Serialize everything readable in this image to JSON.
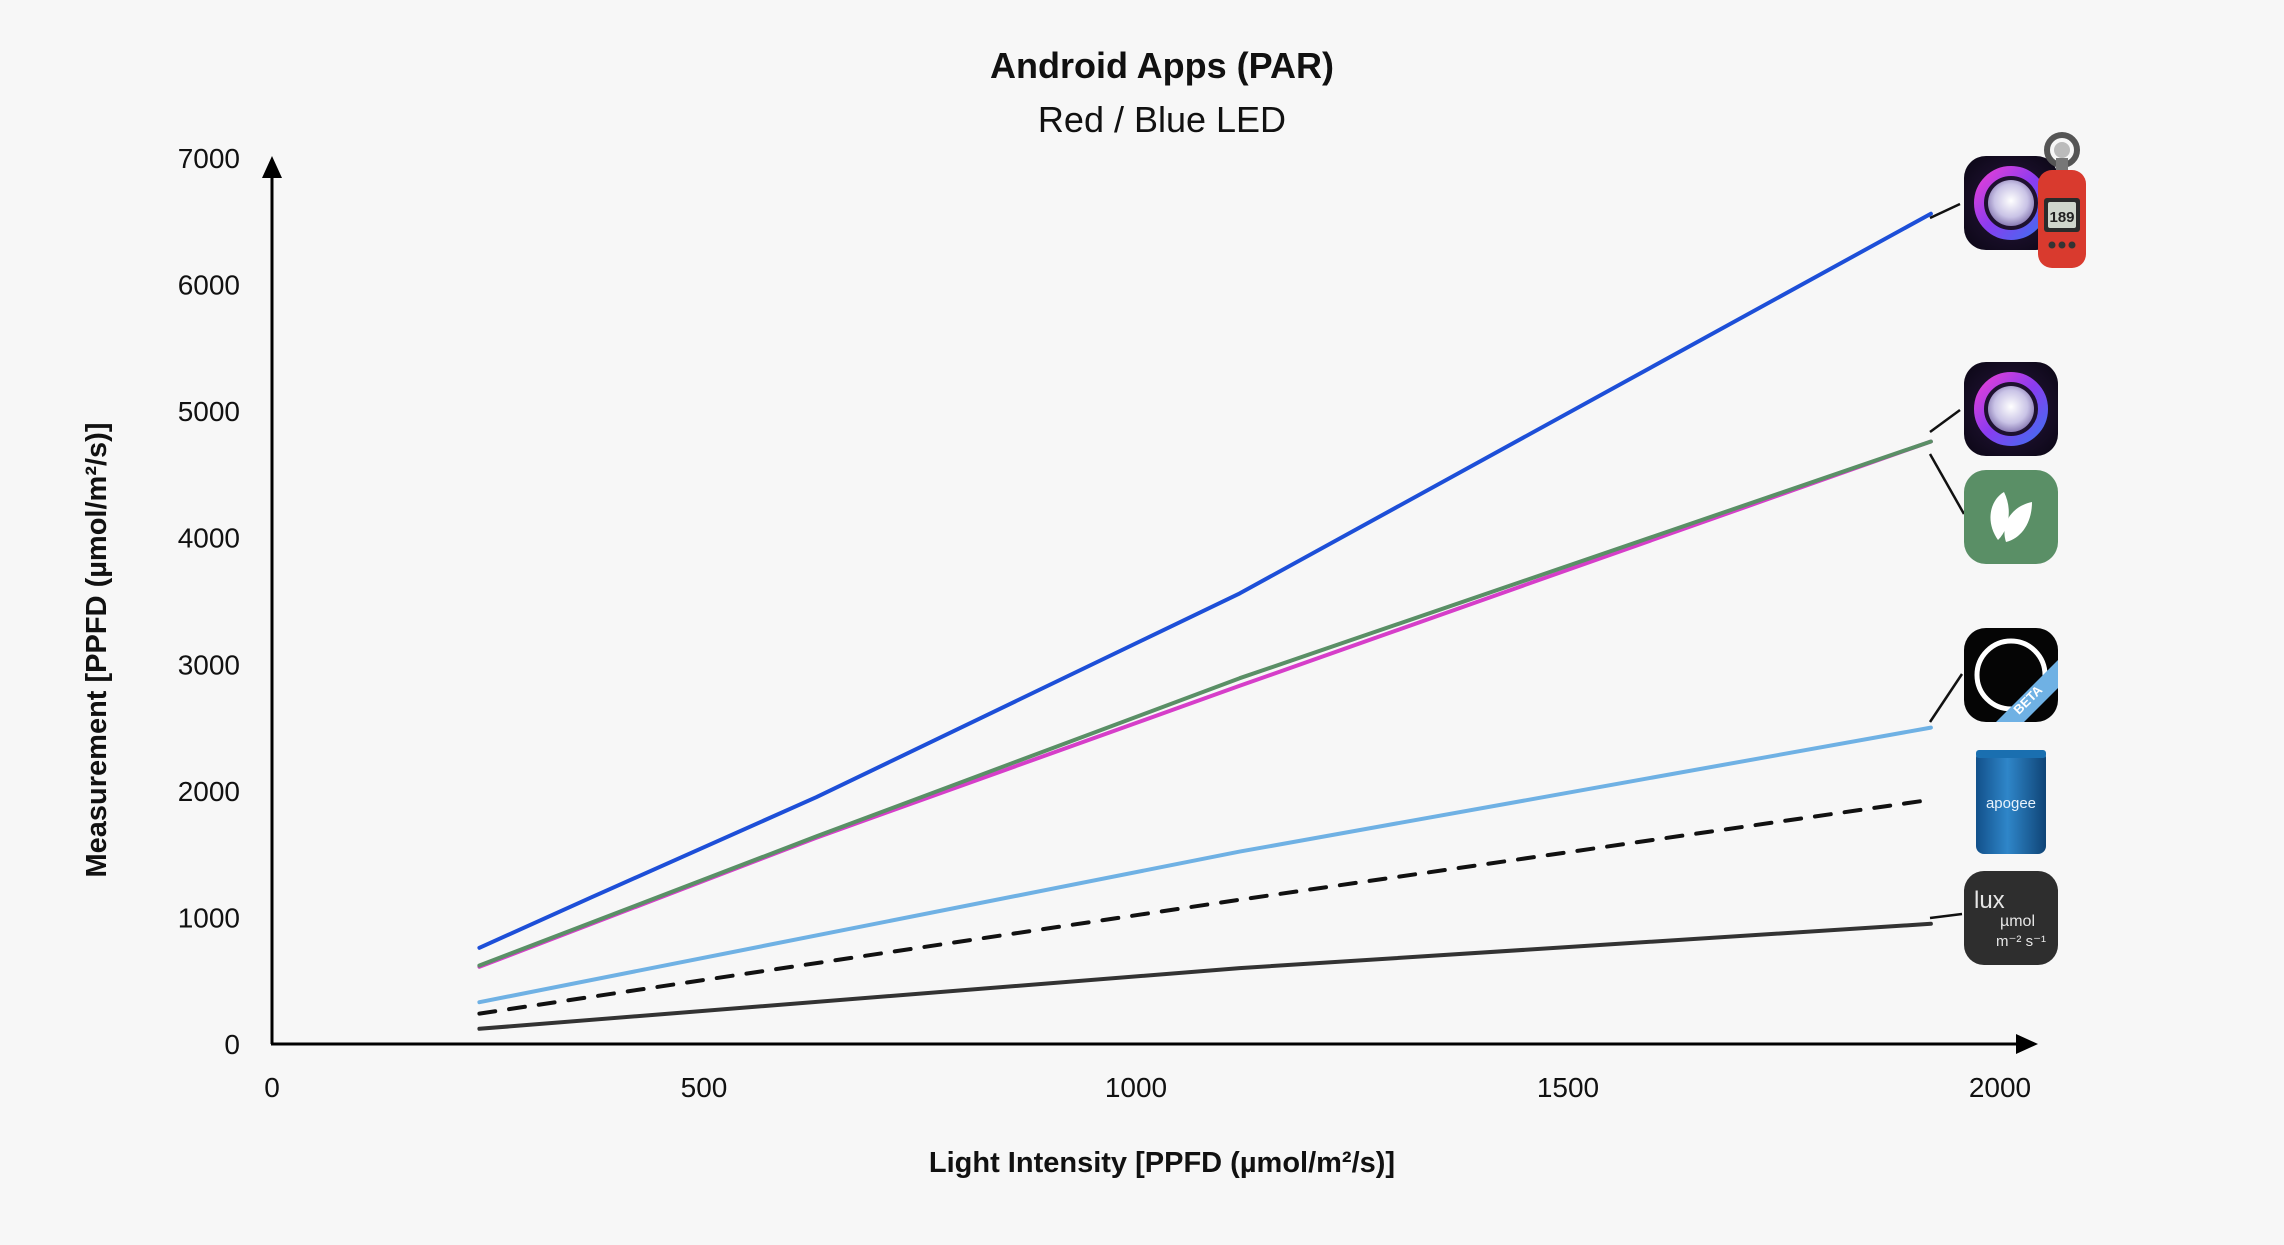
{
  "chart_data": {
    "type": "line",
    "title": "Android Apps (PAR)",
    "subtitle": "Red / Blue LED",
    "xlabel": "Light Intensity [PPFD (µmol/m²/s)]",
    "ylabel": "Measurement [PPFD (µmol/m²/s)]",
    "xlim": [
      0,
      2000
    ],
    "ylim": [
      0,
      7000
    ],
    "x_ticks": [
      "0",
      "500",
      "1000",
      "1500",
      "2000"
    ],
    "y_ticks": [
      "0",
      "1000",
      "2000",
      "3000",
      "4000",
      "5000",
      "6000",
      "7000"
    ],
    "grid": false,
    "legend": "app icons at right end of lines",
    "series": [
      {
        "icon": "lens-app-with-light-meter-icon",
        "color": "#1d4fd8",
        "dashed": false,
        "x": [
          240,
          370,
          630,
          1120,
          1920
        ],
        "y": [
          760,
          1160,
          1950,
          3560,
          6560
        ]
      },
      {
        "icon": "lens-app-icon",
        "color": "#d63ec9",
        "dashed": false,
        "x": [
          240,
          630,
          1120,
          1920
        ],
        "y": [
          610,
          1630,
          2830,
          4760
        ]
      },
      {
        "icon": "leaf-app-icon",
        "color": "#5a8f66",
        "dashed": false,
        "x": [
          240,
          630,
          1120,
          1920
        ],
        "y": [
          620,
          1640,
          2890,
          4760
        ]
      },
      {
        "icon": "beta-ring-app-icon",
        "color": "#6fb1e4",
        "dashed": false,
        "x": [
          240,
          1120,
          1920
        ],
        "y": [
          330,
          1520,
          2500
        ]
      },
      {
        "icon": "apogee-sensor-icon",
        "color": "#111111",
        "dashed": true,
        "x": [
          240,
          1120,
          1920
        ],
        "y": [
          240,
          1140,
          1930
        ]
      },
      {
        "icon": "lux-umol-app-icon",
        "color": "#333333",
        "dashed": false,
        "x": [
          240,
          1120,
          1920
        ],
        "y": [
          120,
          600,
          950
        ]
      }
    ],
    "icon_labels": {
      "apogee": "apogee",
      "lux": "lux",
      "umol": "µmol",
      "units": "m⁻² s⁻¹",
      "beta": "BETA",
      "meter_display": "189"
    }
  }
}
